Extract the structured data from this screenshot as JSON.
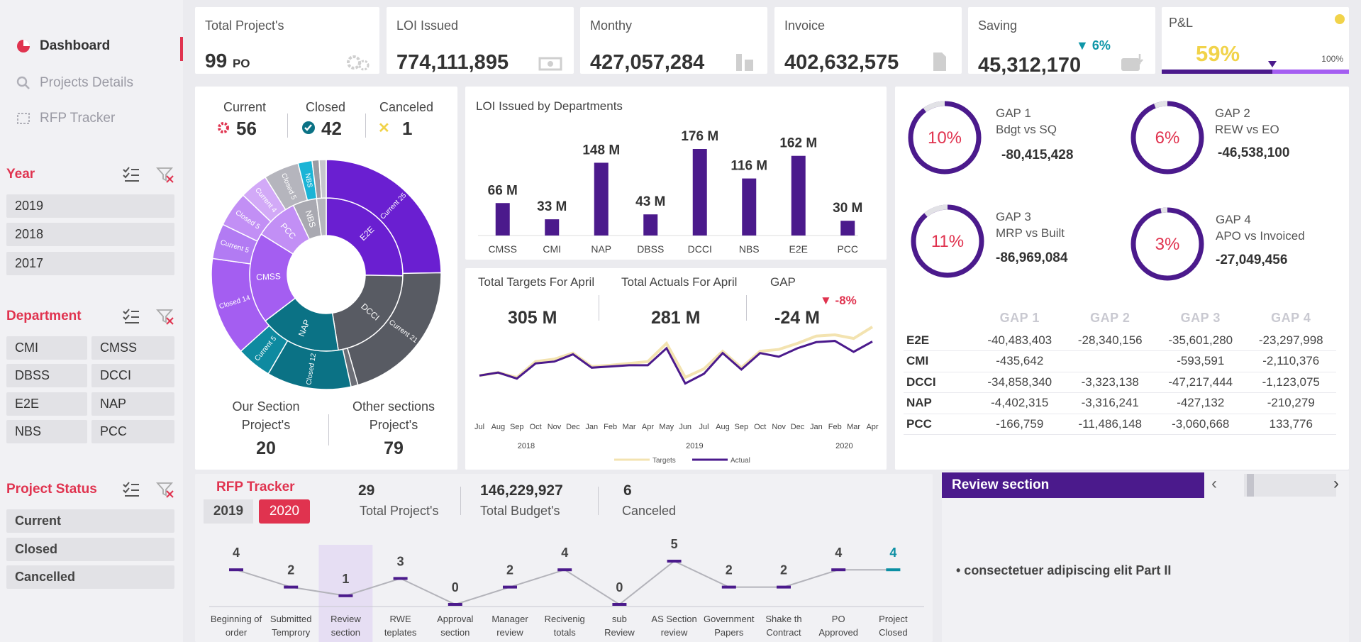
{
  "nav": {
    "items": [
      {
        "label": "Dashboard",
        "icon": "pie-icon",
        "active": true
      },
      {
        "label": "Projects Details",
        "icon": "search-icon",
        "active": false
      },
      {
        "label": "RFP Tracker",
        "icon": "tracker-icon",
        "active": false
      }
    ]
  },
  "slicers": {
    "year": {
      "title": "Year",
      "options": [
        "2019",
        "2018",
        "2017"
      ]
    },
    "department": {
      "title": "Department",
      "options": [
        "CMI",
        "CMSS",
        "DBSS",
        "DCCI",
        "E2E",
        "NAP",
        "NBS",
        "PCC"
      ]
    },
    "status": {
      "title": "Project Status",
      "options": [
        "Current",
        "Closed",
        "Cancelled"
      ]
    }
  },
  "kpis": [
    {
      "title": "Total Project's",
      "value": "99",
      "unit": "PO",
      "icon": "gear-icon"
    },
    {
      "title": "LOI Issued",
      "value": "774,111,895",
      "icon": "money-icon"
    },
    {
      "title": "Monthy",
      "value": "427,057,284",
      "icon": "building-icon"
    },
    {
      "title": "Invoice",
      "value": "402,632,575",
      "icon": "document-icon"
    },
    {
      "title": "Saving",
      "value": "45,312,170",
      "delta": "▼ 6%",
      "icon": "wallet-icon"
    },
    {
      "title": "P&L",
      "value": "59%",
      "max_label": "100%",
      "progress": 0.59,
      "accent": "#f1d34a"
    }
  ],
  "status_counts": {
    "current": {
      "label": "Current",
      "value": "56"
    },
    "closed": {
      "label": "Closed",
      "value": "42"
    },
    "canceled": {
      "label": "Canceled",
      "value": "1"
    }
  },
  "sunburst": {
    "inner": [
      {
        "label": "E2E",
        "value": 25,
        "color": "#6a1fd1"
      },
      {
        "label": "DCCI",
        "value": 22,
        "color": "#585b63"
      },
      {
        "label": "NAP",
        "value": 17,
        "color": "#0b7285"
      },
      {
        "label": "CMSS",
        "value": 19,
        "color": "#a45ef1"
      },
      {
        "label": "PCC",
        "value": 9,
        "color": "#c28ff5"
      },
      {
        "label": "NBS",
        "value": 5,
        "color": "#a9a9b1"
      },
      {
        "label": "",
        "value": 2,
        "color": "#b6b6bd"
      }
    ],
    "outer": [
      {
        "label": "Current 25",
        "value": 25,
        "color": "#6a1fd1"
      },
      {
        "label": "Current 21",
        "value": 21,
        "color": "#585b63"
      },
      {
        "label": "",
        "value": 1,
        "color": "#6c6f77"
      },
      {
        "label": "Closed 12",
        "value": 12,
        "color": "#0b7285"
      },
      {
        "label": "Current 5",
        "value": 5,
        "color": "#0e8aa0"
      },
      {
        "label": "Closed 14",
        "value": 14,
        "color": "#a45ef1"
      },
      {
        "label": "Current 5",
        "value": 5,
        "color": "#b27bf3"
      },
      {
        "label": "Closed 5",
        "value": 5,
        "color": "#c28ff5"
      },
      {
        "label": "Current 4",
        "value": 4,
        "color": "#d2a9f7"
      },
      {
        "label": "Closed 5",
        "value": 5,
        "color": "#b5b5bd"
      },
      {
        "label": "NBS",
        "value": 2,
        "color": "#1bb4d6"
      },
      {
        "label": "",
        "value": 1,
        "color": "#9c9ca4"
      },
      {
        "label": "",
        "value": 1,
        "color": "#c6c6cd"
      }
    ]
  },
  "sections": {
    "our": {
      "label": "Our Section Project's",
      "value": "20"
    },
    "other": {
      "label": "Other sections Project's",
      "value": "79"
    }
  },
  "loi_chart": {
    "title": "LOI Issued by Departments",
    "type": "bar",
    "categories": [
      "CMSS",
      "CMI",
      "NAP",
      "DBSS",
      "DCCI",
      "NBS",
      "E2E",
      "PCC"
    ],
    "values": [
      66,
      33,
      148,
      43,
      176,
      116,
      162,
      30
    ],
    "labels": [
      "66 M",
      "33 M",
      "148 M",
      "43 M",
      "176 M",
      "116 M",
      "162 M",
      "30 M"
    ],
    "color": "#4b1a8c"
  },
  "targets": {
    "target_label": "Total Targets For April",
    "target_value": "305 M",
    "actual_label": "Total Actuals For April",
    "actual_value": "281 M",
    "gap_label": "GAP",
    "gap_value": "-24 M",
    "gap_delta": "▼ -8%"
  },
  "trend_chart": {
    "type": "line",
    "x": [
      "Jul",
      "Aug",
      "Sep",
      "Oct",
      "Nov",
      "Dec",
      "Jan",
      "Feb",
      "Mar",
      "Apr",
      "May",
      "Jun",
      "Jul",
      "Aug",
      "Sep",
      "Oct",
      "Nov",
      "Dec",
      "Jan",
      "Feb",
      "Mar",
      "Apr"
    ],
    "years": [
      {
        "label": "2018",
        "from": 0,
        "to": 5
      },
      {
        "label": "2019",
        "from": 6,
        "to": 17
      },
      {
        "label": "2020",
        "from": 18,
        "to": 21
      }
    ],
    "series": [
      {
        "name": "Targets",
        "color": "#f3e3b0",
        "values": [
          225,
          230,
          222,
          248,
          252,
          262,
          240,
          242,
          245,
          248,
          278,
          222,
          236,
          265,
          238,
          265,
          268,
          278,
          290,
          292,
          286,
          305
        ]
      },
      {
        "name": "Actual",
        "color": "#4b1a8c",
        "values": [
          225,
          230,
          220,
          245,
          248,
          260,
          238,
          240,
          242,
          242,
          270,
          212,
          228,
          262,
          235,
          262,
          256,
          270,
          280,
          282,
          264,
          281
        ]
      }
    ],
    "ylim": [
      180,
      320
    ]
  },
  "gaps": [
    {
      "percent": 10,
      "label": "10%",
      "title": "GAP 1",
      "subtitle": "Bdgt vs SQ",
      "value": "-80,415,428"
    },
    {
      "percent": 6,
      "label": "6%",
      "title": "GAP 2",
      "subtitle": "REW vs EO",
      "value": "-46,538,100"
    },
    {
      "percent": 11,
      "label": "11%",
      "title": "GAP 3",
      "subtitle": "MRP vs Built",
      "value": "-86,969,084"
    },
    {
      "percent": 3,
      "label": "3%",
      "title": "GAP 4",
      "subtitle": "APO vs Invoiced",
      "value": "-27,049,456"
    }
  ],
  "gap_table": {
    "headers": [
      "GAP 1",
      "GAP 2",
      "GAP 3",
      "GAP 4"
    ],
    "rows": [
      {
        "name": "E2E",
        "cells": [
          "-40,483,403",
          "-28,340,156",
          "-35,601,280",
          "-23,297,998"
        ]
      },
      {
        "name": "CMI",
        "cells": [
          "-435,642",
          "",
          "-593,591",
          "-2,110,376"
        ]
      },
      {
        "name": "DCCI",
        "cells": [
          "-34,858,340",
          "-3,323,138",
          "-47,217,444",
          "-1,123,075"
        ]
      },
      {
        "name": "NAP",
        "cells": [
          "-4,402,315",
          "-3,316,241",
          "-427,132",
          "-210,279"
        ]
      },
      {
        "name": "PCC",
        "cells": [
          "-166,759",
          "-11,486,148",
          "-3,060,668",
          "133,776"
        ]
      }
    ]
  },
  "rfp": {
    "title": "RFP Tracker",
    "years": [
      "2019",
      "2020"
    ],
    "selected_year": "2020",
    "stats": [
      {
        "value": "29",
        "label": "Total Project's"
      },
      {
        "value": "146,229,927",
        "label": "Total Budget's"
      },
      {
        "value": "6",
        "label": "Canceled"
      }
    ],
    "chart": {
      "type": "line",
      "categories": [
        "Beginning of order",
        "Submitted Temprory",
        "Review section",
        "RWE teplates",
        "Approval section",
        "Manager review",
        "Recivenig totals",
        "sub Review",
        "AS Section review",
        "Government Papers",
        "Shake th Contract",
        "PO Approved",
        "Project Closed"
      ],
      "values": [
        4,
        2,
        1,
        3,
        0,
        2,
        4,
        0,
        5,
        2,
        2,
        4,
        4
      ],
      "highlight_index": 2,
      "last_color": "#0b8fa3"
    }
  },
  "review": {
    "title": "Review section",
    "text": "• consectetuer adipiscing elit Part II"
  }
}
